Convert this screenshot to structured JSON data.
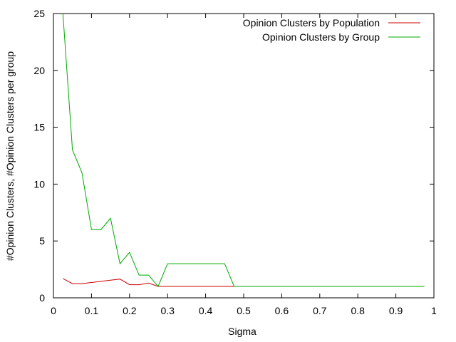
{
  "chart_data": {
    "type": "line",
    "xlabel": "Sigma",
    "ylabel": "#Opinion Clusters, #Opinion Clusters per group",
    "xlim": [
      0,
      1
    ],
    "ylim": [
      0,
      25
    ],
    "xticks": [
      "0",
      "0.1",
      "0.2",
      "0.3",
      "0.4",
      "0.5",
      "0.6",
      "0.7",
      "0.8",
      "0.9",
      "1"
    ],
    "yticks": [
      "0",
      "5",
      "10",
      "15",
      "20",
      "25"
    ],
    "legend_position": "top-right",
    "grid": false,
    "series": [
      {
        "name": "Opinion Clusters by Population",
        "color": "#cc0000",
        "x": [
          0.025,
          0.05,
          0.075,
          0.1,
          0.125,
          0.15,
          0.175,
          0.2,
          0.225,
          0.25,
          0.275,
          0.3,
          0.325,
          0.35,
          0.375,
          0.4,
          0.425,
          0.45,
          0.475,
          0.5,
          0.525,
          0.55,
          0.575,
          0.6,
          0.625,
          0.65,
          0.675,
          0.7,
          0.725,
          0.75,
          0.775,
          0.8,
          0.825,
          0.85,
          0.875,
          0.9,
          0.925,
          0.95,
          0.975
        ],
        "y": [
          1.7,
          1.25,
          1.25,
          1.35,
          1.45,
          1.55,
          1.65,
          1.15,
          1.15,
          1.3,
          1.0,
          1.0,
          1.0,
          1.0,
          1.0,
          1.0,
          1.0,
          1.0,
          1.0,
          1.0,
          1.0,
          1.0,
          1.0,
          1.0,
          1.0,
          1.0,
          1.0,
          1.0,
          1.0,
          1.0,
          1.0,
          1.0,
          1.0,
          1.0,
          1.0,
          1.0,
          1.0,
          1.0,
          1.0
        ]
      },
      {
        "name": "Opinion Clusters by Group",
        "color": "#00aa00",
        "x": [
          0.025,
          0.05,
          0.075,
          0.1,
          0.125,
          0.15,
          0.175,
          0.2,
          0.225,
          0.25,
          0.275,
          0.3,
          0.325,
          0.35,
          0.375,
          0.4,
          0.425,
          0.45,
          0.475,
          0.5,
          0.525,
          0.55,
          0.575,
          0.6,
          0.625,
          0.65,
          0.675,
          0.7,
          0.725,
          0.75,
          0.775,
          0.8,
          0.825,
          0.85,
          0.875,
          0.9,
          0.925,
          0.95,
          0.975
        ],
        "y": [
          25,
          13,
          11,
          6,
          6,
          7,
          3,
          4,
          2,
          2,
          1,
          3,
          3,
          3,
          3,
          3,
          3,
          3,
          1,
          1,
          1,
          1,
          1,
          1,
          1,
          1,
          1,
          1,
          1,
          1,
          1,
          1,
          1,
          1,
          1,
          1,
          1,
          1,
          1
        ]
      }
    ]
  }
}
